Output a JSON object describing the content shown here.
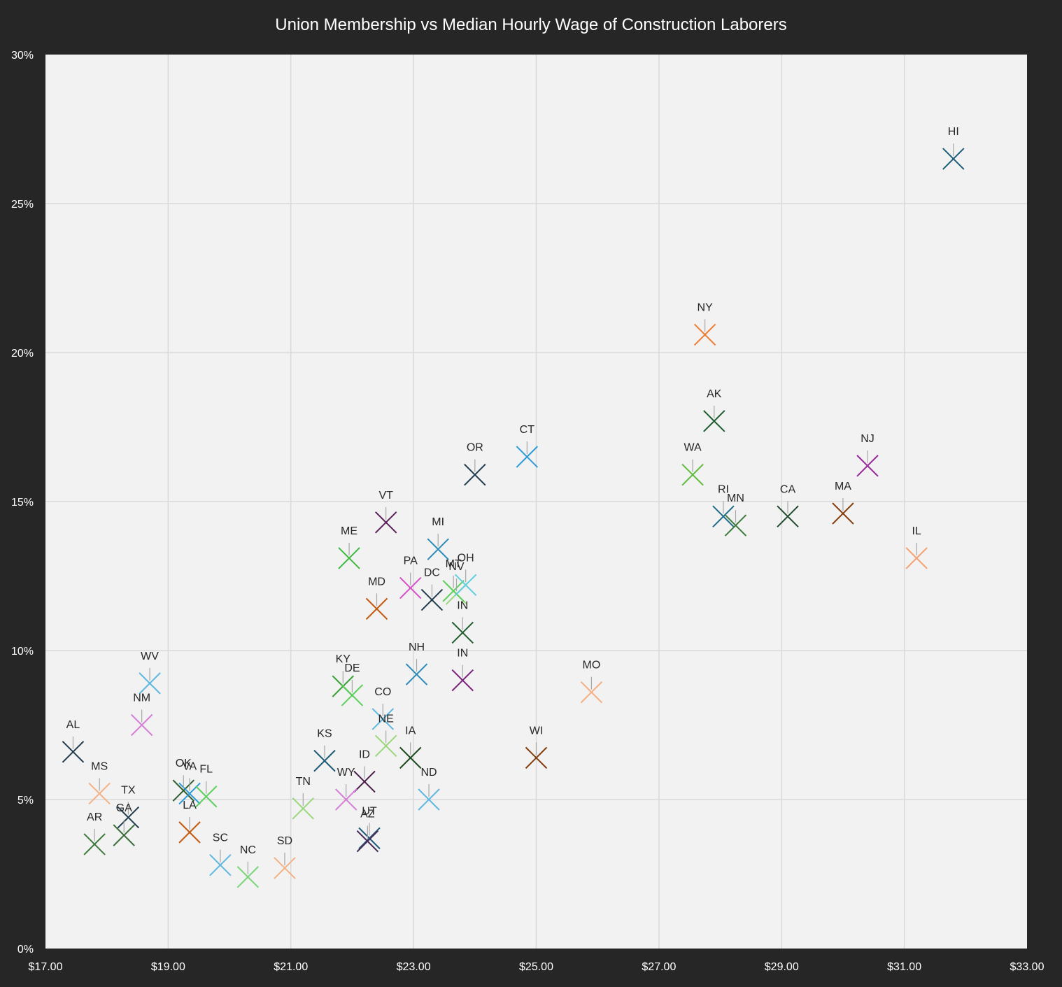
{
  "chart_data": {
    "type": "scatter",
    "title": "Union Membership vs Median Hourly Wage of Construction Laborers",
    "xlabel": "",
    "ylabel": "",
    "xlim": [
      17,
      33
    ],
    "ylim": [
      0,
      0.3
    ],
    "x_ticks": [
      {
        "value": 17,
        "label": "$17.00"
      },
      {
        "value": 19,
        "label": "$19.00"
      },
      {
        "value": 21,
        "label": "$21.00"
      },
      {
        "value": 23,
        "label": "$23.00"
      },
      {
        "value": 25,
        "label": "$25.00"
      },
      {
        "value": 27,
        "label": "$27.00"
      },
      {
        "value": 29,
        "label": "$29.00"
      },
      {
        "value": 31,
        "label": "$31.00"
      },
      {
        "value": 33,
        "label": "$33.00"
      }
    ],
    "y_ticks": [
      {
        "value": 0,
        "label": "0%"
      },
      {
        "value": 0.05,
        "label": "5%"
      },
      {
        "value": 0.1,
        "label": "10%"
      },
      {
        "value": 0.15,
        "label": "15%"
      },
      {
        "value": 0.2,
        "label": "20%"
      },
      {
        "value": 0.25,
        "label": "25%"
      },
      {
        "value": 0.3,
        "label": "30%"
      }
    ],
    "grid": true,
    "marker": "x",
    "points": [
      {
        "label": "AL",
        "x": 17.45,
        "y": 0.066,
        "color": "#1f3b4d"
      },
      {
        "label": "MS",
        "x": 17.88,
        "y": 0.052,
        "color": "#f4b183"
      },
      {
        "label": "AR",
        "x": 17.8,
        "y": 0.035,
        "color": "#3c7a3c"
      },
      {
        "label": "TX",
        "x": 18.35,
        "y": 0.044,
        "color": "#1f3b4d"
      },
      {
        "label": "GA",
        "x": 18.28,
        "y": 0.038,
        "color": "#3c6e3c"
      },
      {
        "label": "WV",
        "x": 18.7,
        "y": 0.089,
        "color": "#5fb8e0"
      },
      {
        "label": "NM",
        "x": 18.57,
        "y": 0.075,
        "color": "#d67fd6"
      },
      {
        "label": "OK",
        "x": 19.25,
        "y": 0.053,
        "color": "#2e5c2e"
      },
      {
        "label": "VA",
        "x": 19.35,
        "y": 0.052,
        "color": "#2b9ad6"
      },
      {
        "label": "FL",
        "x": 19.62,
        "y": 0.051,
        "color": "#5dcf5d"
      },
      {
        "label": "LA",
        "x": 19.35,
        "y": 0.039,
        "color": "#c55a11"
      },
      {
        "label": "SC",
        "x": 19.85,
        "y": 0.028,
        "color": "#5fb8e0"
      },
      {
        "label": "NC",
        "x": 20.3,
        "y": 0.024,
        "color": "#7bd67b"
      },
      {
        "label": "SD",
        "x": 20.9,
        "y": 0.027,
        "color": "#f4b183"
      },
      {
        "label": "TN",
        "x": 21.2,
        "y": 0.047,
        "color": "#9ad67b"
      },
      {
        "label": "KS",
        "x": 21.55,
        "y": 0.063,
        "color": "#1f5c7a"
      },
      {
        "label": "ID",
        "x": 22.2,
        "y": 0.056,
        "color": "#4a1f4a"
      },
      {
        "label": "WY",
        "x": 21.9,
        "y": 0.05,
        "color": "#d67fd6"
      },
      {
        "label": "UT",
        "x": 22.28,
        "y": 0.037,
        "color": "#1f5c7a"
      },
      {
        "label": "AZ",
        "x": 22.25,
        "y": 0.036,
        "color": "#4a2f5a"
      },
      {
        "label": "NE",
        "x": 22.55,
        "y": 0.068,
        "color": "#9ad67b"
      },
      {
        "label": "KY",
        "x": 21.85,
        "y": 0.088,
        "color": "#3ca03c"
      },
      {
        "label": "DE",
        "x": 22.0,
        "y": 0.085,
        "color": "#5dcf5d"
      },
      {
        "label": "CO",
        "x": 22.5,
        "y": 0.077,
        "color": "#5fb8e0"
      },
      {
        "label": "IA",
        "x": 22.95,
        "y": 0.064,
        "color": "#1f4a1f"
      },
      {
        "label": "ND",
        "x": 23.25,
        "y": 0.05,
        "color": "#5fb8e0"
      },
      {
        "label": "MD",
        "x": 22.4,
        "y": 0.114,
        "color": "#c55a11"
      },
      {
        "label": "ME",
        "x": 21.95,
        "y": 0.131,
        "color": "#3cb83c"
      },
      {
        "label": "VT",
        "x": 22.55,
        "y": 0.143,
        "color": "#5a1f5a"
      },
      {
        "label": "PA",
        "x": 22.95,
        "y": 0.121,
        "color": "#d64fc8"
      },
      {
        "label": "MI",
        "x": 23.4,
        "y": 0.134,
        "color": "#2b8ab8"
      },
      {
        "label": "NV",
        "x": 23.7,
        "y": 0.119,
        "color": "#9ad67b"
      },
      {
        "label": "DC",
        "x": 23.3,
        "y": 0.117,
        "color": "#1f3b4d"
      },
      {
        "label": "MT",
        "x": 23.65,
        "y": 0.12,
        "color": "#5dcf5d"
      },
      {
        "label": "OH",
        "x": 23.85,
        "y": 0.122,
        "color": "#5fcfe0"
      },
      {
        "label": "NH",
        "x": 23.05,
        "y": 0.092,
        "color": "#2b8ab8"
      },
      {
        "label": "IN",
        "x": 23.8,
        "y": 0.106,
        "color": "#1f5c2e"
      },
      {
        "label": "OR",
        "x": 24.0,
        "y": 0.159,
        "color": "#1f3b4d"
      },
      {
        "label": "CT",
        "x": 24.85,
        "y": 0.165,
        "color": "#2b9ad6"
      },
      {
        "label": "IN",
        "x": 23.8,
        "y": 0.09,
        "color": "#7a1f7a"
      },
      {
        "label": "WI",
        "x": 25.0,
        "y": 0.064,
        "color": "#843c0c"
      },
      {
        "label": "MO",
        "x": 25.9,
        "y": 0.086,
        "color": "#f4b183"
      },
      {
        "label": "NY",
        "x": 27.75,
        "y": 0.206,
        "color": "#ed7d31"
      },
      {
        "label": "AK",
        "x": 27.9,
        "y": 0.177,
        "color": "#1f5c2e"
      },
      {
        "label": "WA",
        "x": 27.55,
        "y": 0.159,
        "color": "#5dba3c"
      },
      {
        "label": "RI",
        "x": 28.05,
        "y": 0.145,
        "color": "#1f6a8a"
      },
      {
        "label": "MN",
        "x": 28.25,
        "y": 0.142,
        "color": "#3c7a3c"
      },
      {
        "label": "CA",
        "x": 29.1,
        "y": 0.145,
        "color": "#1f4a2e"
      },
      {
        "label": "MA",
        "x": 30.0,
        "y": 0.146,
        "color": "#843c0c"
      },
      {
        "label": "NJ",
        "x": 30.4,
        "y": 0.162,
        "color": "#9a2b9a"
      },
      {
        "label": "IL",
        "x": 31.2,
        "y": 0.131,
        "color": "#f4a070"
      },
      {
        "label": "HI",
        "x": 31.8,
        "y": 0.265,
        "color": "#1f5c7a"
      }
    ]
  }
}
